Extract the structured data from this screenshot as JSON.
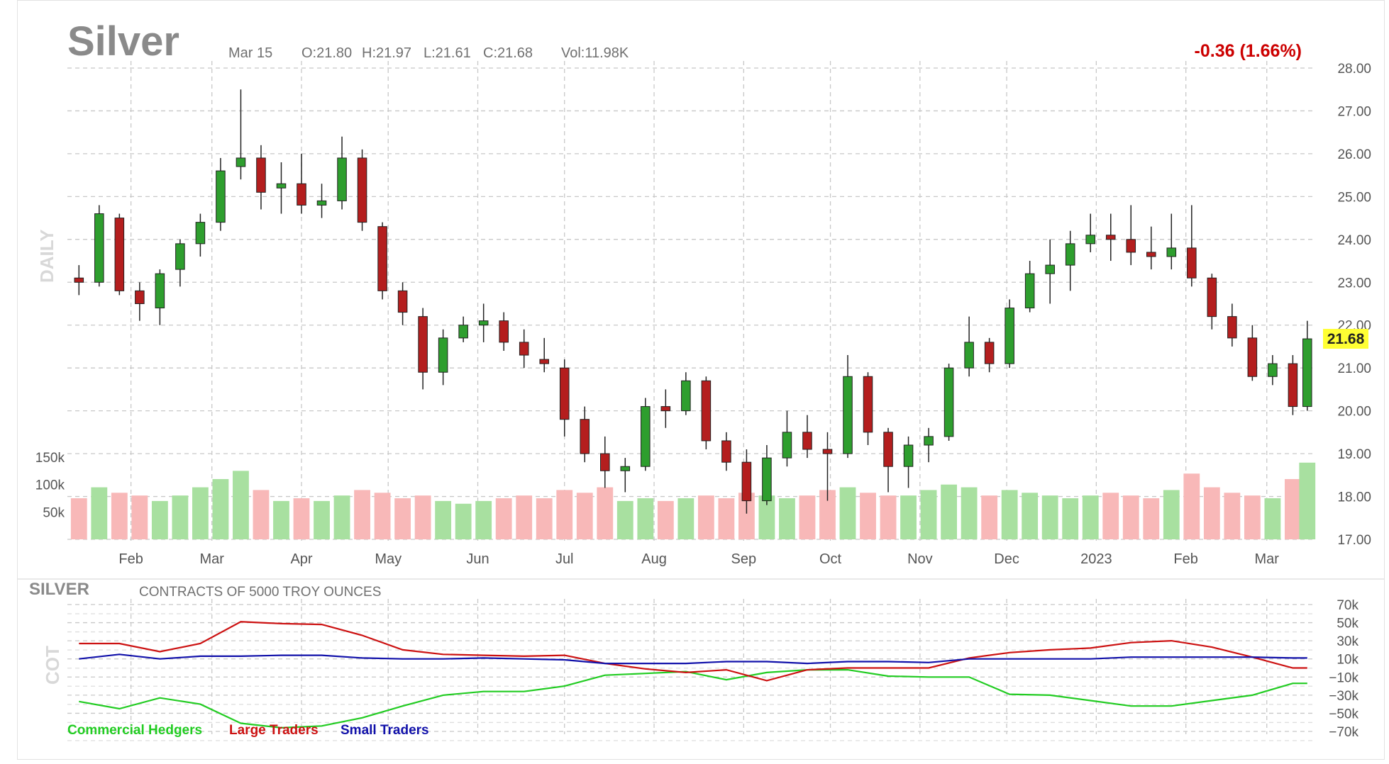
{
  "header": {
    "symbol": "Silver",
    "date": "Mar 15",
    "open": "O:21.80",
    "high": "H:21.97",
    "low": "L:21.61",
    "close": "C:21.68",
    "volume": "Vol:11.98K",
    "change": "-0.36 (1.66%)",
    "last_price_tag": "21.68",
    "side_label_main": "DAILY",
    "side_label_cot": "COT"
  },
  "cot_header": {
    "symbol": "SILVER",
    "subtitle": "CONTRACTS OF 5000 TROY OUNCES"
  },
  "legend": {
    "commercial": "Commercial Hedgers",
    "large": "Large Traders",
    "small": "Small Traders"
  },
  "colors": {
    "up": "#2e9e2e",
    "down": "#b41e1e",
    "vol_up": "#a8e0a0",
    "vol_down": "#f8b8b8",
    "commercial": "#22cc22",
    "large": "#cc1111",
    "small": "#1111aa",
    "change": "#cc0000",
    "tag_bg": "#ffff33"
  },
  "chart_data": [
    {
      "type": "candlestick",
      "title": "Silver",
      "x_ticks": [
        "Feb",
        "Mar",
        "Apr",
        "May",
        "Jun",
        "Jul",
        "Aug",
        "Sep",
        "Oct",
        "Nov",
        "Dec",
        "2023",
        "Feb",
        "Mar"
      ],
      "y_ticks": [
        "28.00",
        "27.00",
        "26.00",
        "25.00",
        "24.00",
        "23.00",
        "22.00",
        "21.00",
        "20.00",
        "19.00",
        "18.00",
        "17.00"
      ],
      "ylim": [
        17,
        28
      ],
      "grid": true,
      "volume_ticks": [
        "150k",
        "100k",
        "50k"
      ],
      "volume_max": 185,
      "weeks": [
        {
          "w": "2022-01-14",
          "o": 23.1,
          "h": 23.4,
          "l": 22.7,
          "c": 23.0,
          "v": 75
        },
        {
          "w": "2022-01-21",
          "o": 23.0,
          "h": 24.8,
          "l": 22.9,
          "c": 24.6,
          "v": 95
        },
        {
          "w": "2022-01-28",
          "o": 24.5,
          "h": 24.6,
          "l": 22.7,
          "c": 22.8,
          "v": 85
        },
        {
          "w": "2022-02-04",
          "o": 22.8,
          "h": 23.0,
          "l": 22.1,
          "c": 22.5,
          "v": 80
        },
        {
          "w": "2022-02-11",
          "o": 22.4,
          "h": 23.3,
          "l": 22.0,
          "c": 23.2,
          "v": 70
        },
        {
          "w": "2022-02-18",
          "o": 23.3,
          "h": 24.0,
          "l": 22.9,
          "c": 23.9,
          "v": 80
        },
        {
          "w": "2022-02-25",
          "o": 23.9,
          "h": 24.6,
          "l": 23.6,
          "c": 24.4,
          "v": 95
        },
        {
          "w": "2022-03-04",
          "o": 24.4,
          "h": 25.9,
          "l": 24.2,
          "c": 25.6,
          "v": 110
        },
        {
          "w": "2022-03-11",
          "o": 25.7,
          "h": 27.5,
          "l": 25.4,
          "c": 25.9,
          "v": 125
        },
        {
          "w": "2022-03-18",
          "o": 25.9,
          "h": 26.2,
          "l": 24.7,
          "c": 25.1,
          "v": 90
        },
        {
          "w": "2022-03-25",
          "o": 25.2,
          "h": 25.8,
          "l": 24.6,
          "c": 25.3,
          "v": 70
        },
        {
          "w": "2022-04-01",
          "o": 25.3,
          "h": 26.0,
          "l": 24.6,
          "c": 24.8,
          "v": 75
        },
        {
          "w": "2022-04-08",
          "o": 24.8,
          "h": 25.3,
          "l": 24.5,
          "c": 24.9,
          "v": 70
        },
        {
          "w": "2022-04-15",
          "o": 24.9,
          "h": 26.4,
          "l": 24.7,
          "c": 25.9,
          "v": 80
        },
        {
          "w": "2022-04-22",
          "o": 25.9,
          "h": 26.1,
          "l": 24.2,
          "c": 24.4,
          "v": 90
        },
        {
          "w": "2022-04-29",
          "o": 24.3,
          "h": 24.4,
          "l": 22.6,
          "c": 22.8,
          "v": 85
        },
        {
          "w": "2022-05-06",
          "o": 22.8,
          "h": 23.0,
          "l": 22.0,
          "c": 22.3,
          "v": 75
        },
        {
          "w": "2022-05-13",
          "o": 22.2,
          "h": 22.4,
          "l": 20.5,
          "c": 20.9,
          "v": 80
        },
        {
          "w": "2022-05-20",
          "o": 20.9,
          "h": 21.9,
          "l": 20.6,
          "c": 21.7,
          "v": 70
        },
        {
          "w": "2022-05-27",
          "o": 21.7,
          "h": 22.2,
          "l": 21.6,
          "c": 22.0,
          "v": 65
        },
        {
          "w": "2022-06-03",
          "o": 22.0,
          "h": 22.5,
          "l": 21.6,
          "c": 22.1,
          "v": 70
        },
        {
          "w": "2022-06-10",
          "o": 22.1,
          "h": 22.3,
          "l": 21.4,
          "c": 21.6,
          "v": 75
        },
        {
          "w": "2022-06-17",
          "o": 21.6,
          "h": 21.9,
          "l": 21.0,
          "c": 21.3,
          "v": 80
        },
        {
          "w": "2022-06-24",
          "o": 21.2,
          "h": 21.7,
          "l": 20.9,
          "c": 21.1,
          "v": 75
        },
        {
          "w": "2022-07-01",
          "o": 21.0,
          "h": 21.2,
          "l": 19.4,
          "c": 19.8,
          "v": 90
        },
        {
          "w": "2022-07-08",
          "o": 19.8,
          "h": 20.1,
          "l": 18.8,
          "c": 19.0,
          "v": 85
        },
        {
          "w": "2022-07-15",
          "o": 19.0,
          "h": 19.4,
          "l": 18.2,
          "c": 18.6,
          "v": 95
        },
        {
          "w": "2022-07-22",
          "o": 18.6,
          "h": 18.9,
          "l": 18.1,
          "c": 18.7,
          "v": 70
        },
        {
          "w": "2022-07-29",
          "o": 18.7,
          "h": 20.3,
          "l": 18.6,
          "c": 20.1,
          "v": 75
        },
        {
          "w": "2022-08-05",
          "o": 20.1,
          "h": 20.5,
          "l": 19.6,
          "c": 20.0,
          "v": 70
        },
        {
          "w": "2022-08-12",
          "o": 20.0,
          "h": 20.9,
          "l": 19.9,
          "c": 20.7,
          "v": 75
        },
        {
          "w": "2022-08-19",
          "o": 20.7,
          "h": 20.8,
          "l": 19.1,
          "c": 19.3,
          "v": 80
        },
        {
          "w": "2022-08-26",
          "o": 19.3,
          "h": 19.5,
          "l": 18.6,
          "c": 18.8,
          "v": 75
        },
        {
          "w": "2022-09-02",
          "o": 18.8,
          "h": 19.1,
          "l": 17.6,
          "c": 17.9,
          "v": 85
        },
        {
          "w": "2022-09-09",
          "o": 17.9,
          "h": 19.2,
          "l": 17.8,
          "c": 18.9,
          "v": 80
        },
        {
          "w": "2022-09-16",
          "o": 18.9,
          "h": 20.0,
          "l": 18.7,
          "c": 19.5,
          "v": 75
        },
        {
          "w": "2022-09-23",
          "o": 19.5,
          "h": 19.9,
          "l": 18.9,
          "c": 19.1,
          "v": 80
        },
        {
          "w": "2022-09-30",
          "o": 19.1,
          "h": 19.5,
          "l": 17.9,
          "c": 19.0,
          "v": 90
        },
        {
          "w": "2022-10-07",
          "o": 19.0,
          "h": 21.3,
          "l": 18.9,
          "c": 20.8,
          "v": 95
        },
        {
          "w": "2022-10-14",
          "o": 20.8,
          "h": 20.9,
          "l": 19.2,
          "c": 19.5,
          "v": 85
        },
        {
          "w": "2022-10-21",
          "o": 19.5,
          "h": 19.6,
          "l": 18.1,
          "c": 18.7,
          "v": 80
        },
        {
          "w": "2022-10-28",
          "o": 18.7,
          "h": 19.4,
          "l": 18.2,
          "c": 19.2,
          "v": 80
        },
        {
          "w": "2022-11-04",
          "o": 19.2,
          "h": 19.6,
          "l": 18.8,
          "c": 19.4,
          "v": 90
        },
        {
          "w": "2022-11-11",
          "o": 19.4,
          "h": 21.1,
          "l": 19.3,
          "c": 21.0,
          "v": 100
        },
        {
          "w": "2022-11-18",
          "o": 21.0,
          "h": 22.2,
          "l": 20.8,
          "c": 21.6,
          "v": 95
        },
        {
          "w": "2022-11-25",
          "o": 21.6,
          "h": 21.7,
          "l": 20.9,
          "c": 21.1,
          "v": 80
        },
        {
          "w": "2022-12-02",
          "o": 21.1,
          "h": 22.6,
          "l": 21.0,
          "c": 22.4,
          "v": 90
        },
        {
          "w": "2022-12-09",
          "o": 22.4,
          "h": 23.5,
          "l": 22.3,
          "c": 23.2,
          "v": 85
        },
        {
          "w": "2022-12-16",
          "o": 23.2,
          "h": 24.0,
          "l": 22.5,
          "c": 23.4,
          "v": 80
        },
        {
          "w": "2022-12-23",
          "o": 23.4,
          "h": 24.2,
          "l": 22.8,
          "c": 23.9,
          "v": 75
        },
        {
          "w": "2022-12-30",
          "o": 23.9,
          "h": 24.6,
          "l": 23.7,
          "c": 24.1,
          "v": 80
        },
        {
          "w": "2023-01-06",
          "o": 24.1,
          "h": 24.6,
          "l": 23.5,
          "c": 24.0,
          "v": 85
        },
        {
          "w": "2023-01-13",
          "o": 24.0,
          "h": 24.8,
          "l": 23.4,
          "c": 23.7,
          "v": 80
        },
        {
          "w": "2023-01-20",
          "o": 23.7,
          "h": 24.3,
          "l": 23.3,
          "c": 23.6,
          "v": 75
        },
        {
          "w": "2023-01-27",
          "o": 23.6,
          "h": 24.6,
          "l": 23.3,
          "c": 23.8,
          "v": 90
        },
        {
          "w": "2023-02-03",
          "o": 23.8,
          "h": 24.8,
          "l": 22.9,
          "c": 23.1,
          "v": 120
        },
        {
          "w": "2023-02-10",
          "o": 23.1,
          "h": 23.2,
          "l": 21.9,
          "c": 22.2,
          "v": 95
        },
        {
          "w": "2023-02-17",
          "o": 22.2,
          "h": 22.5,
          "l": 21.5,
          "c": 21.7,
          "v": 85
        },
        {
          "w": "2023-02-24",
          "o": 21.7,
          "h": 22.0,
          "l": 20.7,
          "c": 20.8,
          "v": 80
        },
        {
          "w": "2023-03-03",
          "o": 20.8,
          "h": 21.3,
          "l": 20.6,
          "c": 21.1,
          "v": 75
        },
        {
          "w": "2023-03-10",
          "o": 21.1,
          "h": 21.3,
          "l": 19.9,
          "c": 20.1,
          "v": 110
        },
        {
          "w": "2023-03-15",
          "o": 20.1,
          "h": 22.1,
          "l": 20.0,
          "c": 21.68,
          "v": 140
        }
      ]
    },
    {
      "type": "line",
      "title": "SILVER",
      "subtitle": "CONTRACTS OF 5000 TROY OUNCES",
      "y_ticks": [
        "70k",
        "50k",
        "30k",
        "10k",
        "−10k",
        "−30k",
        "−50k",
        "−70k"
      ],
      "ylim": [
        -70,
        70
      ],
      "grid": true,
      "x": [
        "2022-01-14",
        "2022-01-28",
        "2022-02-11",
        "2022-02-25",
        "2022-03-11",
        "2022-03-25",
        "2022-04-08",
        "2022-04-22",
        "2022-05-06",
        "2022-05-20",
        "2022-06-03",
        "2022-06-17",
        "2022-07-01",
        "2022-07-15",
        "2022-07-29",
        "2022-08-12",
        "2022-08-26",
        "2022-09-09",
        "2022-09-23",
        "2022-10-07",
        "2022-10-21",
        "2022-11-04",
        "2022-11-18",
        "2022-12-02",
        "2022-12-16",
        "2022-12-30",
        "2023-01-13",
        "2023-01-27",
        "2023-02-10",
        "2023-02-24",
        "2023-03-10",
        "2023-03-15"
      ],
      "series": [
        {
          "name": "Commercial Hedgers",
          "color_key": "commercial",
          "values": [
            -37,
            -45,
            -33,
            -40,
            -61,
            -66,
            -64,
            -55,
            -42,
            -30,
            -26,
            -26,
            -20,
            -8,
            -6,
            -4,
            -13,
            -5,
            -2,
            -2,
            -9,
            -10,
            -10,
            -29,
            -30,
            -36,
            -42,
            -42,
            -36,
            -30,
            -17,
            -17
          ]
        },
        {
          "name": "Large Traders",
          "color_key": "large",
          "values": [
            27,
            27,
            18,
            27,
            51,
            49,
            48,
            36,
            20,
            15,
            14,
            13,
            14,
            5,
            -1,
            -5,
            -2,
            -14,
            -2,
            0,
            0,
            0,
            11,
            17,
            20,
            22,
            28,
            30,
            23,
            12,
            0,
            0
          ]
        },
        {
          "name": "Small Traders",
          "color_key": "small",
          "values": [
            10,
            15,
            10,
            13,
            13,
            14,
            14,
            11,
            10,
            10,
            11,
            10,
            9,
            5,
            5,
            5,
            7,
            7,
            5,
            7,
            7,
            6,
            10,
            10,
            10,
            10,
            12,
            12,
            12,
            12,
            11,
            11
          ]
        }
      ]
    }
  ]
}
